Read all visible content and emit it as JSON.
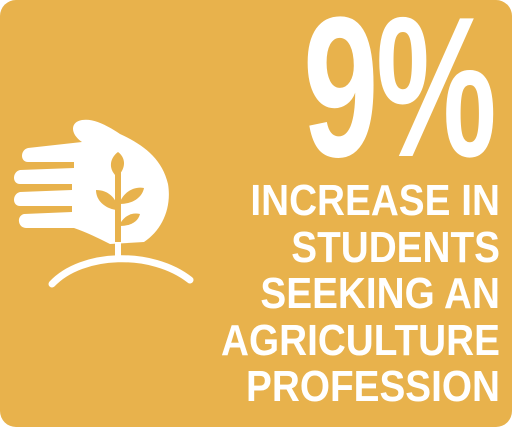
{
  "stat": {
    "value": "9%"
  },
  "caption": {
    "lines": [
      "INCREASE IN",
      "STUDENTS",
      "SEEKING AN",
      "AGRICULTURE",
      "PROFESSION"
    ]
  },
  "icon": {
    "name": "hand-with-sprout-icon"
  },
  "colors": {
    "background": "#e8b24c",
    "foreground": "#ffffff"
  }
}
